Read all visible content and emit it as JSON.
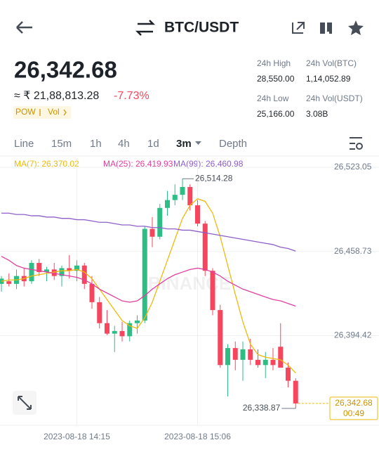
{
  "header": {
    "pair": "BTC/USDT"
  },
  "price": {
    "last": "26,342.68",
    "fiat": "≈ ₹ 21,88,813.28",
    "change": "-7.73%",
    "tag_pow": "POW",
    "tag_vol": "Vol"
  },
  "stats": [
    {
      "label": "24h High",
      "value": "28,550.00"
    },
    {
      "label": "24h Vol(BTC)",
      "value": "1,14,052.89"
    },
    {
      "label": "24h Low",
      "value": "25,166.00"
    },
    {
      "label": "24h Vol(USDT)",
      "value": "3.08B"
    }
  ],
  "tabs": [
    "Line",
    "15m",
    "1h",
    "4h",
    "1d",
    "3m",
    "Depth"
  ],
  "chart_data": {
    "type": "candlestick",
    "watermark": "BINANCE",
    "ylim": [
      26326,
      26530
    ],
    "yticks": [
      {
        "value": 26523.05,
        "label": "26,523.05"
      },
      {
        "value": 26458.73,
        "label": "26,458.73"
      },
      {
        "value": 26394.42,
        "label": "26,394.42"
      }
    ],
    "categories": [
      null,
      null,
      null,
      null,
      null,
      null,
      null,
      null,
      null,
      null,
      "2023-08-18 14:15",
      null,
      null,
      null,
      null,
      null,
      null,
      null,
      null,
      null,
      null,
      null,
      null,
      null,
      null,
      null,
      "2023-08-18 15:06",
      null,
      null,
      null,
      null,
      null,
      null,
      null,
      null,
      null,
      null,
      null,
      null,
      null
    ],
    "up_color": "#2ebd85",
    "down_color": "#f6465d",
    "candles": [
      {
        "open": 26434,
        "high": 26440,
        "low": 26428,
        "close": 26438
      },
      {
        "open": 26436,
        "high": 26442,
        "low": 26432,
        "close": 26434
      },
      {
        "open": 26434,
        "high": 26445,
        "low": 26430,
        "close": 26440
      },
      {
        "open": 26440,
        "high": 26446,
        "low": 26432,
        "close": 26436
      },
      {
        "open": 26436,
        "high": 26452,
        "low": 26434,
        "close": 26450
      },
      {
        "open": 26450,
        "high": 26453,
        "low": 26440,
        "close": 26443
      },
      {
        "open": 26443,
        "high": 26447,
        "low": 26436,
        "close": 26445
      },
      {
        "open": 26445,
        "high": 26450,
        "low": 26437,
        "close": 26440
      },
      {
        "open": 26440,
        "high": 26448,
        "low": 26432,
        "close": 26446
      },
      {
        "open": 26446,
        "high": 26456,
        "low": 26438,
        "close": 26444
      },
      {
        "open": 26444,
        "high": 26452,
        "low": 26436,
        "close": 26448
      },
      {
        "open": 26448,
        "high": 26450,
        "low": 26430,
        "close": 26434
      },
      {
        "open": 26434,
        "high": 26440,
        "low": 26415,
        "close": 26420
      },
      {
        "open": 26420,
        "high": 26424,
        "low": 26400,
        "close": 26404
      },
      {
        "open": 26404,
        "high": 26414,
        "low": 26395,
        "close": 26396
      },
      {
        "open": 26396,
        "high": 26402,
        "low": 26382,
        "close": 26398
      },
      {
        "open": 26398,
        "high": 26405,
        "low": 26390,
        "close": 26394
      },
      {
        "open": 26394,
        "high": 26406,
        "low": 26390,
        "close": 26404
      },
      {
        "open": 26404,
        "high": 26410,
        "low": 26396,
        "close": 26406
      },
      {
        "open": 26406,
        "high": 26478,
        "low": 26404,
        "close": 26476
      },
      {
        "open": 26476,
        "high": 26485,
        "low": 26462,
        "close": 26470
      },
      {
        "open": 26470,
        "high": 26495,
        "low": 26468,
        "close": 26492
      },
      {
        "open": 26492,
        "high": 26505,
        "low": 26486,
        "close": 26498
      },
      {
        "open": 26498,
        "high": 26510,
        "low": 26494,
        "close": 26502
      },
      {
        "open": 26502,
        "high": 26514.28,
        "low": 26498,
        "close": 26508
      },
      {
        "open": 26508,
        "high": 26510,
        "low": 26490,
        "close": 26494
      },
      {
        "open": 26494,
        "high": 26498,
        "low": 26478,
        "close": 26480
      },
      {
        "open": 26480,
        "high": 26482,
        "low": 26440,
        "close": 26444
      },
      {
        "open": 26444,
        "high": 26446,
        "low": 26410,
        "close": 26414
      },
      {
        "open": 26414,
        "high": 26418,
        "low": 26370,
        "close": 26372
      },
      {
        "open": 26372,
        "high": 26388,
        "low": 26348,
        "close": 26385
      },
      {
        "open": 26385,
        "high": 26390,
        "low": 26368,
        "close": 26376
      },
      {
        "open": 26376,
        "high": 26390,
        "low": 26360,
        "close": 26384
      },
      {
        "open": 26384,
        "high": 26392,
        "low": 26372,
        "close": 26376
      },
      {
        "open": 26376,
        "high": 26384,
        "low": 26370,
        "close": 26372
      },
      {
        "open": 26372,
        "high": 26382,
        "low": 26362,
        "close": 26376
      },
      {
        "open": 26376,
        "high": 26385,
        "low": 26368,
        "close": 26372
      },
      {
        "open": 26386,
        "high": 26404,
        "low": 26370,
        "close": 26370
      },
      {
        "open": 26370,
        "high": 26374,
        "low": 26355,
        "close": 26360
      },
      {
        "open": 26360,
        "high": 26362,
        "low": 26338.87,
        "close": 26342.68
      }
    ],
    "series": [
      {
        "name": "MA(7): 26,370.02",
        "color": "#f0b90b",
        "values": [
          26436,
          26437,
          26437,
          26438,
          26440,
          26441,
          26442,
          26443,
          26444,
          26444,
          26445,
          26443,
          26438,
          26430,
          26422,
          26414,
          26406,
          26402,
          26400,
          26408,
          26420,
          26436,
          26452,
          26468,
          26484,
          26494,
          26499,
          26497,
          26488,
          26470,
          26448,
          26426,
          26405,
          26388,
          26380,
          26378,
          26377,
          26376,
          26372,
          26366
        ]
      },
      {
        "name": "MA(25): 26,419.93",
        "color": "#e040a0",
        "values": [
          26455,
          26452,
          26448,
          26446,
          26445,
          26444,
          26443,
          26442,
          26441,
          26440,
          26439,
          26437,
          26434,
          26430,
          26427,
          26424,
          26421,
          26420,
          26421,
          26425,
          26430,
          26434,
          26438,
          26441,
          26443,
          26445,
          26446,
          26445,
          26443,
          26440,
          26436,
          26433,
          26430,
          26428,
          26426,
          26424,
          26422,
          26421,
          26419,
          26417
        ]
      },
      {
        "name": "MA(99): 26,460.98",
        "color": "#8e5fc8",
        "values": [
          26488,
          26488,
          26487,
          26487,
          26486,
          26486,
          26485,
          26485,
          26484,
          26484,
          26483,
          26483,
          26482,
          26481,
          26481,
          26480,
          26479,
          26479,
          26478,
          26478,
          26477,
          26477,
          26476,
          26476,
          26475,
          26475,
          26474,
          26473,
          26472,
          26471,
          26470,
          26469,
          26468,
          26467,
          26466,
          26465,
          26464,
          26462,
          26461,
          26459
        ]
      }
    ],
    "high_label": "26,514.28",
    "low_label": "26,338.87",
    "last_price_label": "26,342.68",
    "countdown": "00:49"
  }
}
